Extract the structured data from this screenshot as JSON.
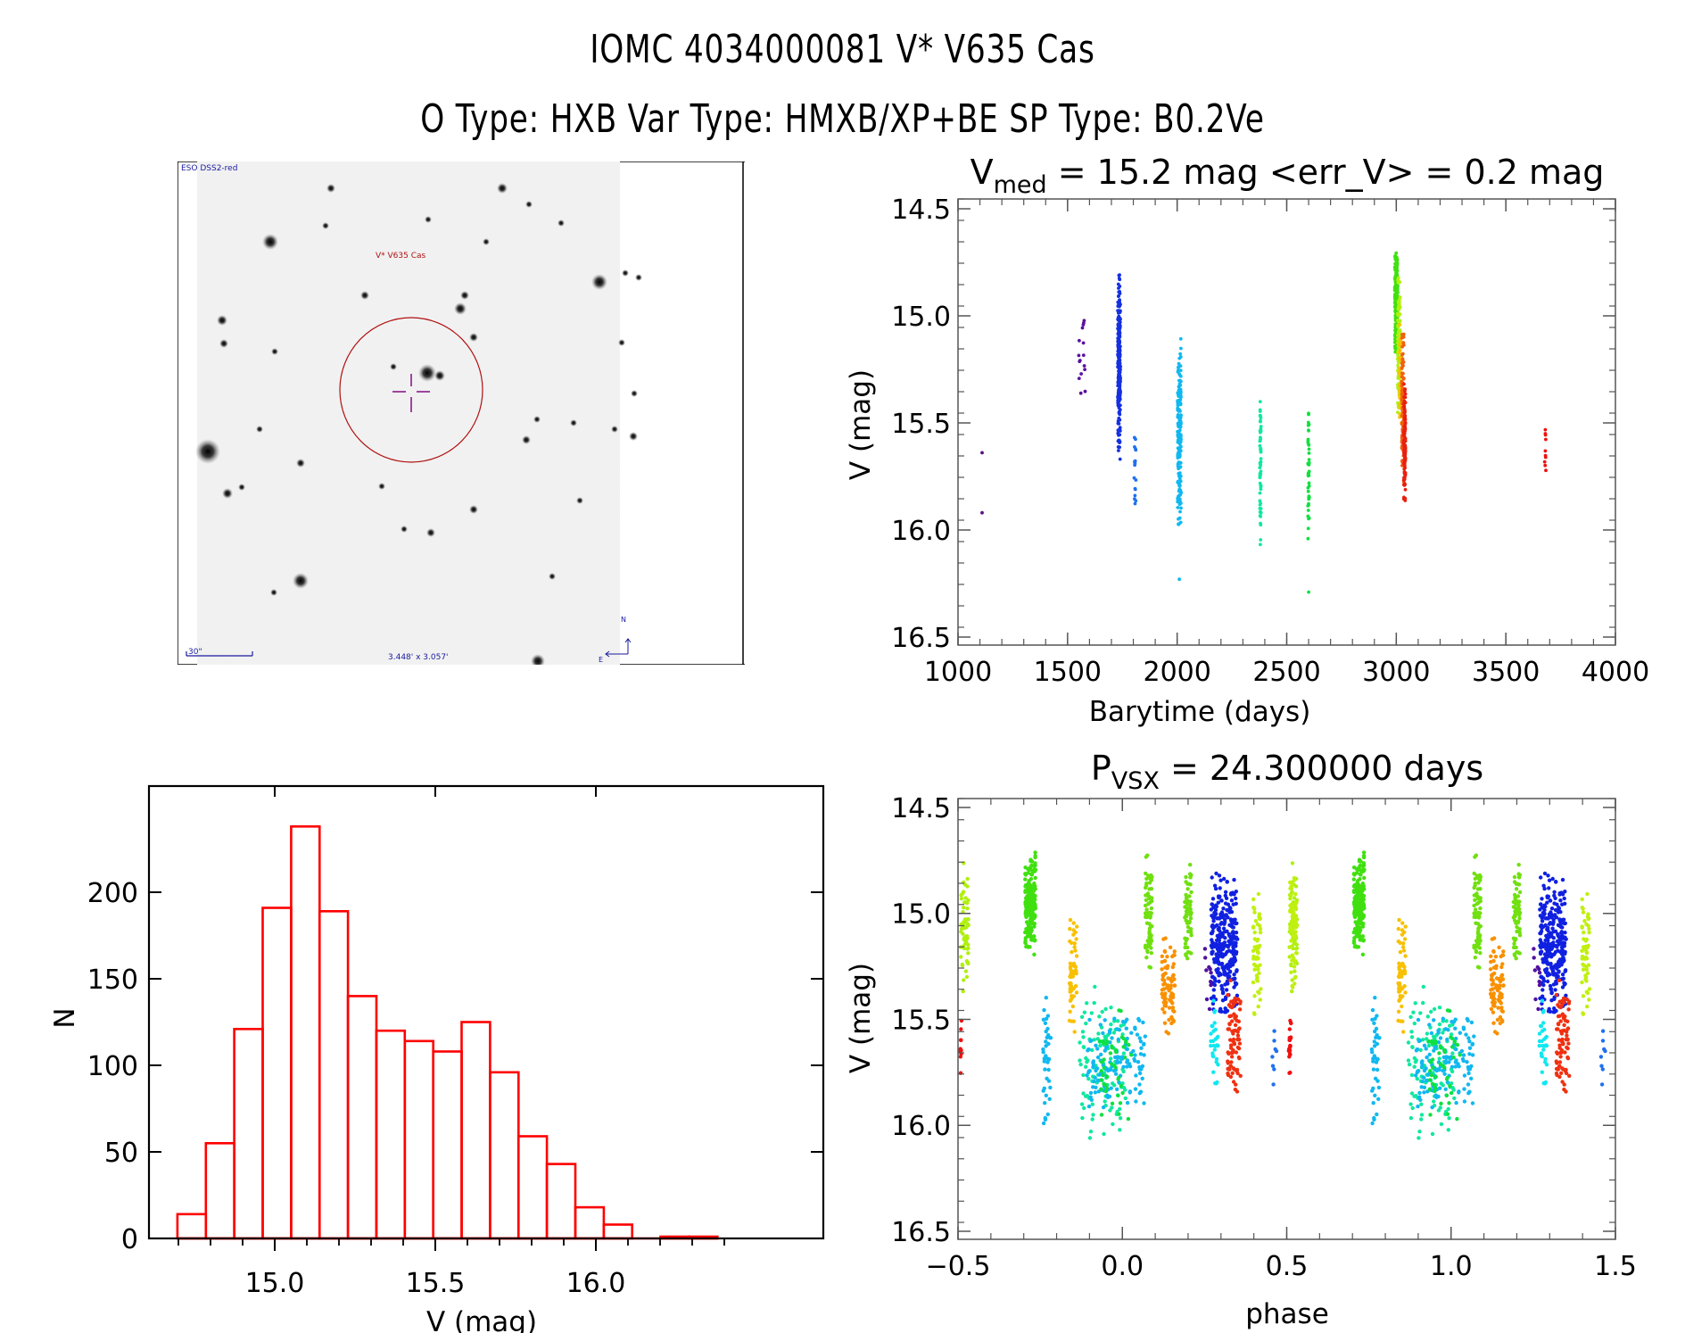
{
  "header": {
    "line1": "IOMC 4034000081    V* V635 Cas",
    "line2": "O Type: HXB  Var Type: HMXB/XP+BE  SP Type: B0.2Ve"
  },
  "finder_chart": {
    "survey_label": "ESO DSS2-red",
    "target_label": "V* V635 Cas",
    "scale_bar_label": "30\"",
    "field_size_label": "3.448' x 3.057'",
    "north_label": "N",
    "east_label": "E",
    "colors": {
      "circle": "#b01010",
      "crosshair": "#8a1a8a",
      "annotation": "#1a1aa0"
    }
  },
  "chart_data": [
    {
      "id": "lightcurve",
      "type": "scatter",
      "title_main": "V",
      "title_sub": "med",
      "title_rest": " = 15.2 mag <err_V> = 0.2 mag",
      "xlabel": "Barytime (days)",
      "ylabel": "V (mag)",
      "xlim": [
        1000,
        4000
      ],
      "ylim": [
        16.5,
        14.5
      ],
      "y_inverted": true,
      "xticks": [
        1000,
        1500,
        2000,
        2500,
        3000,
        3500,
        4000
      ],
      "xtick_labels": [
        "1000",
        "1500",
        "2000",
        "2500",
        "3000",
        "3500",
        "4000"
      ],
      "yticks": [
        14.5,
        15.0,
        15.5,
        16.0,
        16.5
      ],
      "ytick_labels": [
        "14.5",
        "15.0",
        "15.5",
        "16.0",
        "16.5"
      ],
      "x_minor_step": 100,
      "y_minor_step": 0.1,
      "color_coding": "rainbow by observing time",
      "clusters": [
        {
          "t": 1110,
          "dt": 0,
          "vmin": 15.6,
          "vmax": 15.92,
          "n": 2,
          "color": "#5a1080"
        },
        {
          "t": 1565,
          "dt": 18,
          "vmin": 14.88,
          "vmax": 15.48,
          "n": 16,
          "color": "#5a10a0"
        },
        {
          "t": 1735,
          "dt": 6,
          "vmin": 14.78,
          "vmax": 15.67,
          "n": 260,
          "color": "#1530e0"
        },
        {
          "t": 1808,
          "dt": 4,
          "vmin": 15.53,
          "vmax": 15.92,
          "n": 18,
          "color": "#2070f0"
        },
        {
          "t": 2010,
          "dt": 8,
          "vmin": 15.1,
          "vmax": 16.04,
          "n": 200,
          "color": "#10b8f0"
        },
        {
          "t": 2010,
          "dt": 0,
          "vmin": 16.23,
          "vmax": 16.23,
          "n": 1,
          "color": "#10b8f0"
        },
        {
          "t": 2380,
          "dt": 3,
          "vmin": 15.33,
          "vmax": 16.08,
          "n": 60,
          "color": "#10e8a0"
        },
        {
          "t": 2600,
          "dt": 3,
          "vmin": 15.4,
          "vmax": 16.06,
          "n": 45,
          "color": "#10e040"
        },
        {
          "t": 2600,
          "dt": 0,
          "vmin": 16.29,
          "vmax": 16.29,
          "n": 1,
          "color": "#10e040"
        },
        {
          "t": 3000,
          "dt": 7,
          "vmin": 14.69,
          "vmax": 15.2,
          "n": 220,
          "color": "#40e010"
        },
        {
          "t": 3012,
          "dt": 6,
          "vmin": 14.8,
          "vmax": 15.5,
          "n": 120,
          "color": "#b0f010"
        },
        {
          "t": 3020,
          "dt": 5,
          "vmin": 15.0,
          "vmax": 15.6,
          "n": 60,
          "color": "#f8c000"
        },
        {
          "t": 3030,
          "dt": 5,
          "vmin": 15.05,
          "vmax": 15.8,
          "n": 140,
          "color": "#f06010"
        },
        {
          "t": 3038,
          "dt": 4,
          "vmin": 15.3,
          "vmax": 15.9,
          "n": 120,
          "color": "#e82010"
        },
        {
          "t": 3680,
          "dt": 3,
          "vmin": 15.49,
          "vmax": 15.77,
          "n": 10,
          "color": "#f01010"
        }
      ]
    },
    {
      "id": "histogram",
      "type": "bar",
      "title": "",
      "xlabel": "V (mag)",
      "ylabel": "N",
      "xlim": [
        14.61,
        16.47
      ],
      "ylim": [
        0,
        245
      ],
      "xticks": [
        15.0,
        15.5,
        16.0
      ],
      "xtick_labels": [
        "15.0",
        "15.5",
        "16.0"
      ],
      "x_minor_step": 0.1,
      "yticks": [
        0,
        50,
        100,
        150,
        200
      ],
      "ytick_labels": [
        "0",
        "50",
        "100",
        "150",
        "200"
      ],
      "bin_start": 14.697,
      "bin_width": 0.0885,
      "values": [
        14,
        55,
        121,
        191,
        238,
        189,
        140,
        120,
        114,
        108,
        125,
        96,
        59,
        43,
        18,
        8,
        0,
        1,
        1
      ],
      "bar_color": "#ff0000"
    },
    {
      "id": "phased",
      "type": "scatter",
      "title_main": "P",
      "title_sub": "VSX",
      "title_rest": " = 24.300000 days",
      "xlabel": "phase",
      "ylabel": "V (mag)",
      "xlim": [
        -0.5,
        1.5
      ],
      "ylim": [
        16.5,
        14.5
      ],
      "y_inverted": true,
      "xticks": [
        -0.5,
        0.0,
        0.5,
        1.0,
        1.5
      ],
      "xtick_labels": [
        "−0.5",
        "0.0",
        "0.5",
        "1.0",
        "1.5"
      ],
      "yticks": [
        14.5,
        15.0,
        15.5,
        16.0,
        16.5
      ],
      "ytick_labels": [
        "14.5",
        "15.0",
        "15.5",
        "16.0",
        "16.5"
      ],
      "x_minor_step": 0.1,
      "y_minor_step": 0.1,
      "period_days": 24.3,
      "repeat_offset": 1.0,
      "clusters": [
        {
          "p": -0.48,
          "dp": 0.012,
          "vmin": 14.72,
          "vmax": 15.4,
          "n": 60,
          "color": "#b0f010"
        },
        {
          "p": -0.49,
          "dp": 0.004,
          "vmin": 15.48,
          "vmax": 15.77,
          "n": 10,
          "color": "#f01010"
        },
        {
          "p": -0.28,
          "dp": 0.016,
          "vmin": 14.7,
          "vmax": 15.2,
          "n": 200,
          "color": "#40e010"
        },
        {
          "p": -0.15,
          "dp": 0.012,
          "vmin": 14.98,
          "vmax": 15.57,
          "n": 60,
          "color": "#f8c000"
        },
        {
          "p": -0.23,
          "dp": 0.012,
          "vmin": 15.3,
          "vmax": 16.04,
          "n": 40,
          "color": "#10b8f0"
        },
        {
          "p": -0.06,
          "dp": 0.07,
          "vmin": 15.33,
          "vmax": 16.08,
          "n": 110,
          "color": "#10e8a0"
        },
        {
          "p": -0.02,
          "dp": 0.09,
          "vmin": 15.45,
          "vmax": 15.95,
          "n": 140,
          "color": "#10b8f0"
        },
        {
          "p": -0.02,
          "dp": 0.05,
          "vmin": 15.4,
          "vmax": 16.06,
          "n": 45,
          "color": "#10e040"
        },
        {
          "p": 0.08,
          "dp": 0.01,
          "vmin": 14.72,
          "vmax": 15.3,
          "n": 70,
          "color": "#70e010"
        },
        {
          "p": 0.14,
          "dp": 0.02,
          "vmin": 15.08,
          "vmax": 15.63,
          "n": 80,
          "color": "#f89000"
        },
        {
          "p": 0.2,
          "dp": 0.01,
          "vmin": 14.72,
          "vmax": 15.3,
          "n": 60,
          "color": "#70e010"
        },
        {
          "p": 0.31,
          "dp": 0.04,
          "vmin": 14.8,
          "vmax": 15.5,
          "n": 300,
          "color": "#1020e0"
        },
        {
          "p": 0.28,
          "dp": 0.012,
          "vmin": 15.35,
          "vmax": 15.9,
          "n": 30,
          "color": "#10e8f0"
        },
        {
          "p": 0.34,
          "dp": 0.02,
          "vmin": 15.3,
          "vmax": 15.9,
          "n": 80,
          "color": "#f03010"
        },
        {
          "p": 0.41,
          "dp": 0.012,
          "vmin": 14.86,
          "vmax": 15.5,
          "n": 60,
          "color": "#c0f010"
        },
        {
          "p": 0.46,
          "dp": 0.01,
          "vmin": 15.55,
          "vmax": 15.82,
          "n": 8,
          "color": "#2070f0"
        },
        {
          "p": 0.52,
          "dp": 0.01,
          "vmin": 14.72,
          "vmax": 15.4,
          "n": 60,
          "color": "#c0f010"
        },
        {
          "p": 0.51,
          "dp": 0.003,
          "vmin": 15.48,
          "vmax": 15.77,
          "n": 10,
          "color": "#f01010"
        },
        {
          "p": 0.26,
          "dp": 0.01,
          "vmin": 15.1,
          "vmax": 15.5,
          "n": 10,
          "color": "#5010a0"
        }
      ]
    }
  ]
}
